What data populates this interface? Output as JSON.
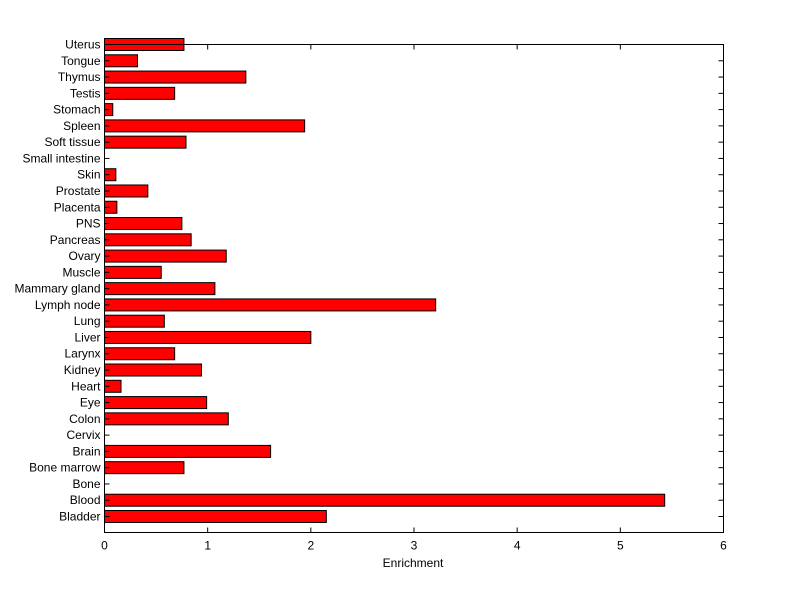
{
  "chart_data": {
    "type": "bar",
    "orientation": "horizontal",
    "title": "",
    "xlabel": "Enrichment",
    "ylabel": "",
    "xlim": [
      0,
      6
    ],
    "xticks": [
      "0",
      "1",
      "2",
      "3",
      "4",
      "5",
      "6"
    ],
    "grid": false,
    "bar_color": "#ff0000",
    "categories": [
      "Bladder",
      "Blood",
      "Bone",
      "Bone marrow",
      "Brain",
      "Cervix",
      "Colon",
      "Eye",
      "Heart",
      "Kidney",
      "Larynx",
      "Liver",
      "Lung",
      "Lymph node",
      "Mammary gland",
      "Muscle",
      "Ovary",
      "Pancreas",
      "PNS",
      "Placenta",
      "Prostate",
      "Skin",
      "Small intestine",
      "Soft tissue",
      "Spleen",
      "Stomach",
      "Testis",
      "Thymus",
      "Tongue",
      "Uterus"
    ],
    "values": [
      2.15,
      5.43,
      0,
      0.77,
      1.61,
      0,
      1.2,
      0.99,
      0.16,
      0.94,
      0.68,
      2.0,
      0.58,
      3.21,
      1.07,
      0.55,
      1.18,
      0.84,
      0.75,
      0.12,
      0.42,
      0.11,
      0,
      0.79,
      1.94,
      0.08,
      0.68,
      1.37,
      0.32,
      0.77
    ]
  }
}
